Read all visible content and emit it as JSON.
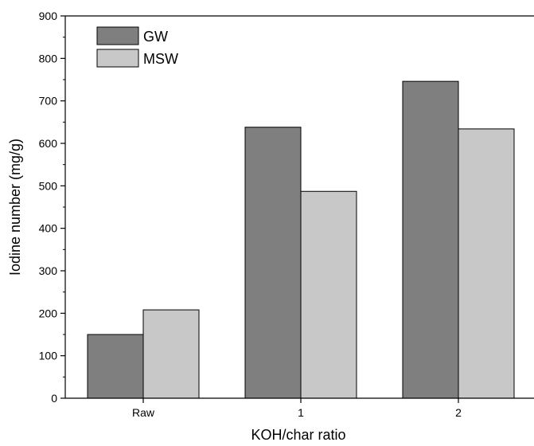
{
  "chart_data": {
    "type": "bar",
    "categories": [
      "Raw",
      "1",
      "2"
    ],
    "series": [
      {
        "name": "GW",
        "values": [
          150,
          638,
          746
        ],
        "color": "#7f7f7f"
      },
      {
        "name": "MSW",
        "values": [
          208,
          487,
          634
        ],
        "color": "#c8c8c8"
      }
    ],
    "xlabel": "KOH/char ratio",
    "ylabel": "Iodine number (mg/g)",
    "ylim": [
      0,
      900
    ],
    "yticks": [
      "0",
      "100",
      "200",
      "300",
      "400",
      "500",
      "600",
      "700",
      "800",
      "900"
    ],
    "grid": false,
    "legend_position": "top-left",
    "bar_outline_color": "#000000"
  }
}
